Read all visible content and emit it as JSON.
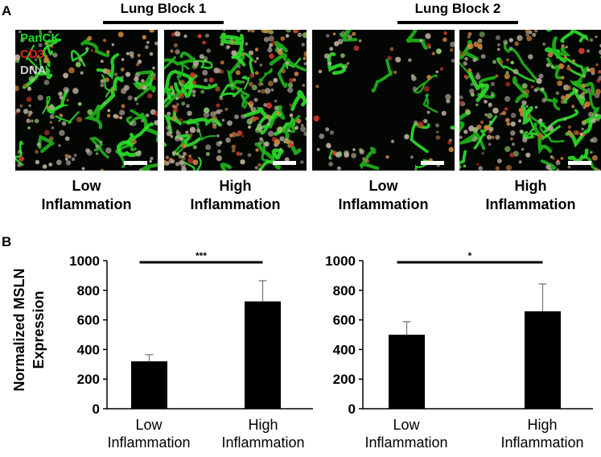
{
  "panel_a": {
    "letter": "A",
    "blocks": [
      {
        "title": "Lung Block 1"
      },
      {
        "title": "Lung Block 2"
      }
    ],
    "legend": [
      {
        "label": "PanCK",
        "color": "#1ee01e"
      },
      {
        "label": "CD3",
        "color": "#e01e1e"
      },
      {
        "label": "DNA",
        "color": "#cfcfcf"
      }
    ],
    "images": [
      {
        "caption_line1": "Low",
        "caption_line2": "Inflammation"
      },
      {
        "caption_line1": "High",
        "caption_line2": "Inflammation"
      },
      {
        "caption_line1": "Low",
        "caption_line2": "Inflammation"
      },
      {
        "caption_line1": "High",
        "caption_line2": "Inflammation"
      }
    ]
  },
  "panel_b": {
    "letter": "B"
  },
  "chart_data": [
    {
      "type": "bar",
      "categories": [
        [
          "Low",
          "Inflammation"
        ],
        [
          "High",
          "Inflammation"
        ]
      ],
      "values": [
        320,
        725
      ],
      "errors": [
        45,
        140
      ],
      "ylabel": [
        "Normalized MSLN",
        "Expression"
      ],
      "ylim": [
        0,
        1000
      ],
      "yticks": [
        "0",
        "200",
        "400",
        "600",
        "800",
        "1000"
      ],
      "significance": "***",
      "bar_color": "#000000",
      "grid": false
    },
    {
      "type": "bar",
      "categories": [
        [
          "Low",
          "Inflammation"
        ],
        [
          "High",
          "Inflammation"
        ]
      ],
      "values": [
        500,
        658
      ],
      "errors": [
        88,
        185
      ],
      "ylabel": "",
      "ylim": [
        0,
        1000
      ],
      "yticks": [
        "0",
        "200",
        "400",
        "600",
        "800",
        "1000"
      ],
      "significance": "*",
      "bar_color": "#000000",
      "grid": false
    }
  ]
}
